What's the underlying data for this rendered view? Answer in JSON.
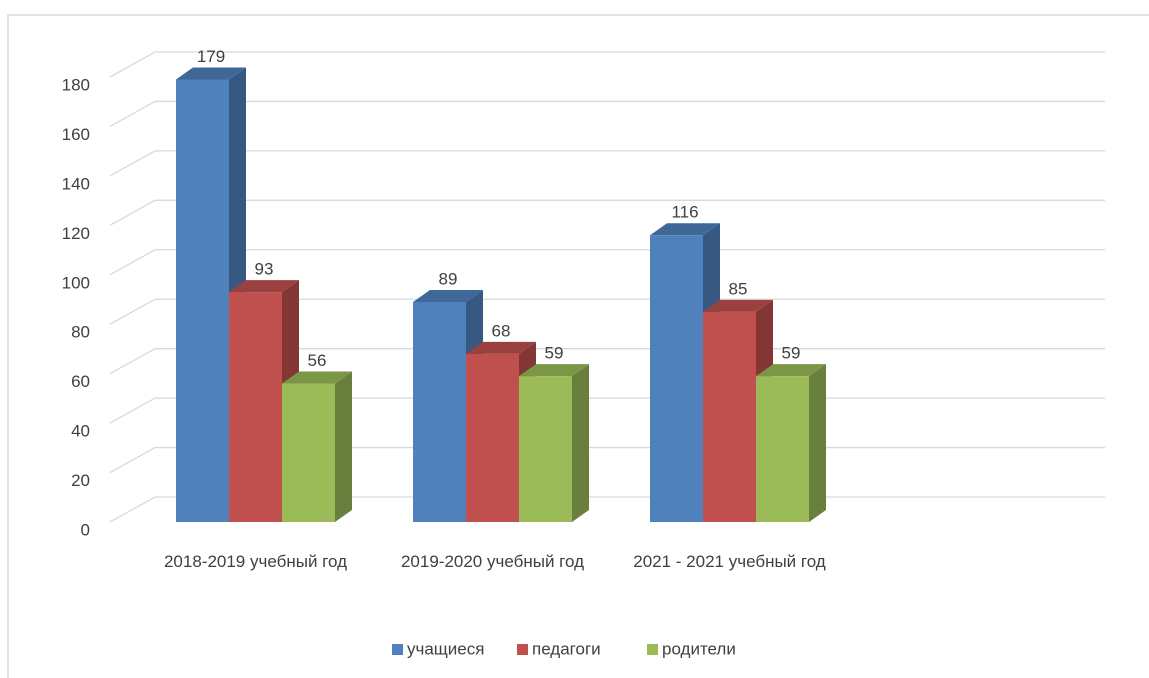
{
  "chart_data": {
    "type": "bar3d",
    "categories": [
      "2018-2019 учебный год",
      "2019-2020 учебный год",
      "2021 - 2021 учебный год"
    ],
    "series": [
      {
        "name": "учащиеся",
        "color": "#4f81bd",
        "values": [
          179,
          89,
          116
        ]
      },
      {
        "name": "педагоги",
        "color": "#c0504d",
        "values": [
          93,
          68,
          85
        ]
      },
      {
        "name": "родители",
        "color": "#9bbb59",
        "values": [
          56,
          59,
          59
        ]
      }
    ],
    "ylim": [
      0,
      180
    ],
    "yticks": [
      0,
      20,
      40,
      60,
      80,
      100,
      120,
      140,
      160,
      180
    ],
    "grid": true,
    "legend": "bottom"
  }
}
